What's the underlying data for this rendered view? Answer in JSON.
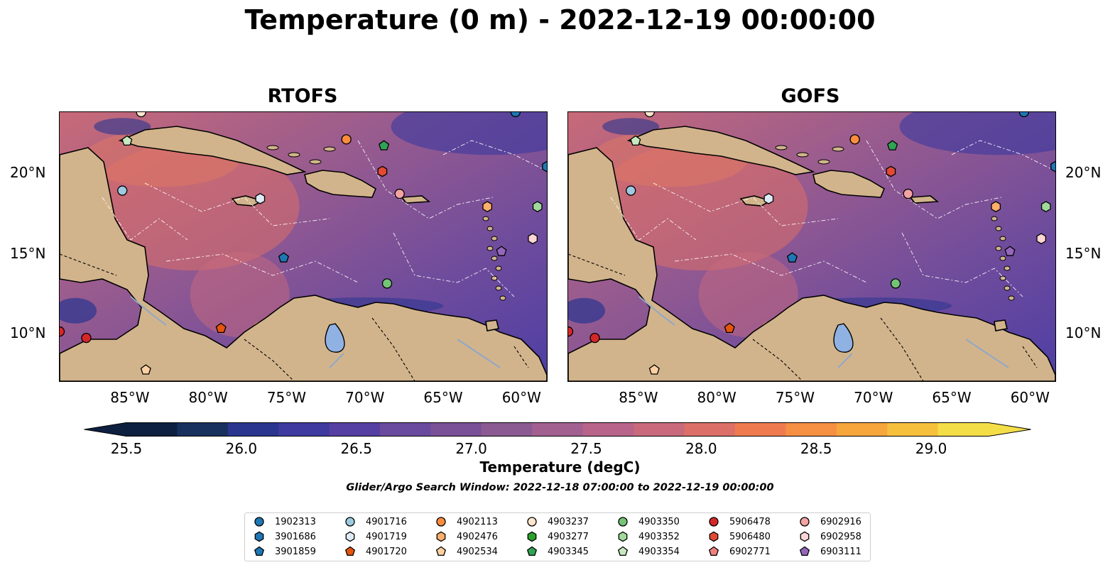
{
  "title": "Temperature (0 m) - 2022-12-19 00:00:00",
  "panels": [
    {
      "title": "RTOFS"
    },
    {
      "title": "GOFS"
    }
  ],
  "lon_ticks": [
    "85°W",
    "80°W",
    "75°W",
    "70°W",
    "65°W",
    "60°W"
  ],
  "lat_ticks": [
    "20°N",
    "15°N",
    "10°N"
  ],
  "map_extent": {
    "lon": [
      -89.5,
      -58.4
    ],
    "lat": [
      7.1,
      23.9
    ]
  },
  "colorbar": {
    "label": "Temperature (degC)",
    "ticks": [
      "25.5",
      "26.0",
      "26.5",
      "27.0",
      "27.5",
      "28.0",
      "28.5",
      "29.0"
    ],
    "range": [
      25.5,
      29.25
    ],
    "colors": [
      "#0d2040",
      "#18305e",
      "#2a3590",
      "#3e3aa0",
      "#563fa2",
      "#6a4a9e",
      "#7a5096",
      "#8c5a92",
      "#a26090",
      "#b8648a",
      "#c96a7c",
      "#dc7068",
      "#f07a50",
      "#f58f42",
      "#f6a63a",
      "#f6c03c",
      "#f4de48"
    ],
    "extend": "both"
  },
  "search_window": "Glider/Argo Search Window: 2022-12-18 07:00:00 to 2022-12-19 00:00:00",
  "legend": [
    {
      "id": "1902313",
      "marker": "circle",
      "color": "#1f77b4"
    },
    {
      "id": "3901686",
      "marker": "hexagon",
      "color": "#1f77b4"
    },
    {
      "id": "3901859",
      "marker": "pentagon",
      "color": "#1f77b4"
    },
    {
      "id": "4901716",
      "marker": "circle",
      "color": "#9ecae1"
    },
    {
      "id": "4901719",
      "marker": "hexagon",
      "color": "#deebf7"
    },
    {
      "id": "4901720",
      "marker": "pentagon",
      "color": "#e6550d"
    },
    {
      "id": "4902113",
      "marker": "circle",
      "color": "#fd8d3c"
    },
    {
      "id": "4902476",
      "marker": "hexagon",
      "color": "#fdae6b"
    },
    {
      "id": "4902534",
      "marker": "pentagon",
      "color": "#fdd0a2"
    },
    {
      "id": "4903237",
      "marker": "circle",
      "color": "#fee6ce"
    },
    {
      "id": "4903277",
      "marker": "hexagon",
      "color": "#2ca02c"
    },
    {
      "id": "4903345",
      "marker": "pentagon",
      "color": "#31a354"
    },
    {
      "id": "4903350",
      "marker": "circle",
      "color": "#74c476"
    },
    {
      "id": "4903352",
      "marker": "hexagon",
      "color": "#a1d99b"
    },
    {
      "id": "4903354",
      "marker": "pentagon",
      "color": "#c7e9c0"
    },
    {
      "id": "5906478",
      "marker": "circle",
      "color": "#d62728"
    },
    {
      "id": "5906480",
      "marker": "hexagon",
      "color": "#e34a33"
    },
    {
      "id": "6902771",
      "marker": "pentagon",
      "color": "#f08080"
    },
    {
      "id": "6902916",
      "marker": "circle",
      "color": "#f4a3a3"
    },
    {
      "id": "6902958",
      "marker": "hexagon",
      "color": "#fdd5d5"
    },
    {
      "id": "6903111",
      "marker": "pentagon",
      "color": "#9467bd"
    }
  ],
  "floats": [
    {
      "id": "4903354",
      "lon": -85.2,
      "lat": 22.1
    },
    {
      "id": "4901716",
      "lon": -85.5,
      "lat": 19.0
    },
    {
      "id": "4903237",
      "lon": -84.3,
      "lat": 23.9
    },
    {
      "id": "4902113",
      "lon": -71.2,
      "lat": 22.2
    },
    {
      "id": "4903345",
      "lon": -68.8,
      "lat": 21.8
    },
    {
      "id": "5906480",
      "lon": -68.9,
      "lat": 20.2
    },
    {
      "id": "6902916",
      "lon": -67.8,
      "lat": 18.8
    },
    {
      "id": "4901719",
      "lon": -76.7,
      "lat": 18.5
    },
    {
      "id": "3901859",
      "lon": -75.2,
      "lat": 14.8
    },
    {
      "id": "4903350",
      "lon": -68.6,
      "lat": 13.2
    },
    {
      "id": "4901720",
      "lon": -79.2,
      "lat": 10.4
    },
    {
      "id": "5906478",
      "lon": -89.5,
      "lat": 10.2
    },
    {
      "id": "5906478",
      "lon": -87.8,
      "lat": 9.8
    },
    {
      "id": "4902534",
      "lon": -84.0,
      "lat": 7.8
    },
    {
      "id": "4902476",
      "lon": -62.2,
      "lat": 18.0
    },
    {
      "id": "4903352",
      "lon": -59.0,
      "lat": 18.0
    },
    {
      "id": "3901686",
      "lon": -58.4,
      "lat": 20.5
    },
    {
      "id": "1902313",
      "lon": -60.4,
      "lat": 23.9
    },
    {
      "id": "6902958",
      "lon": -59.3,
      "lat": 16.0
    },
    {
      "id": "6903111",
      "lon": -61.3,
      "lat": 15.2
    }
  ]
}
